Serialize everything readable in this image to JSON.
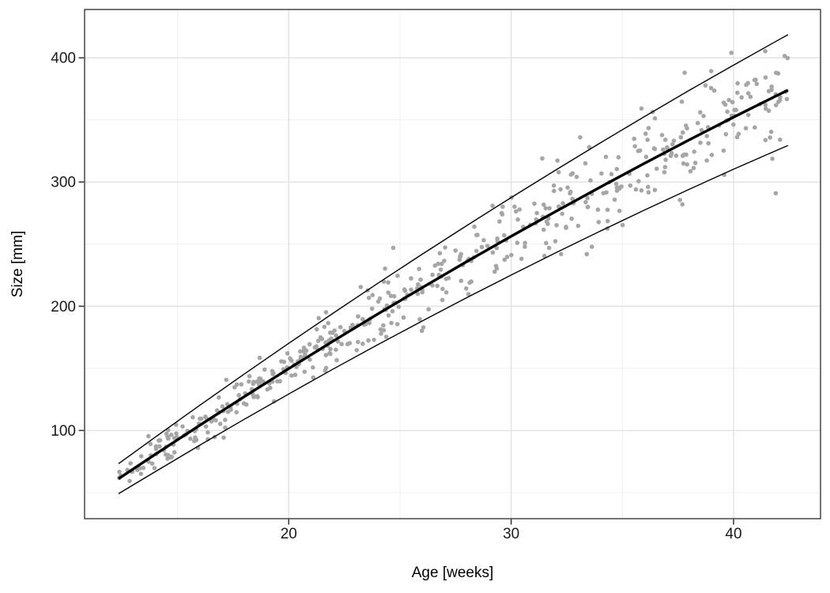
{
  "chart_data": {
    "type": "scatter",
    "title": "",
    "xlabel": "Age [weeks]",
    "ylabel": "Size [mm]",
    "x_domain": [
      10.82,
      43.91
    ],
    "y_domain": [
      29.0,
      438.9
    ],
    "x_ticks": [
      {
        "v": 20,
        "label": "20"
      },
      {
        "v": 30,
        "label": "30"
      },
      {
        "v": 40,
        "label": "40"
      }
    ],
    "y_ticks": [
      {
        "v": 100,
        "label": "100"
      },
      {
        "v": 200,
        "label": "200"
      },
      {
        "v": 300,
        "label": "300"
      },
      {
        "v": 400,
        "label": "400"
      }
    ],
    "x_minor": [
      15,
      25,
      35
    ],
    "y_minor": [
      50,
      150,
      250,
      350
    ],
    "grid": "major and minor, light gray on white panel",
    "legend": "none",
    "colors": {
      "point": "#a6a6a6",
      "line": "#000000",
      "grid_major": "#e3e3e3",
      "grid_minor": "#f0f0f0",
      "panel_border": "#454545",
      "tick": "#333333",
      "text": "#1a1a1a",
      "panel_bg": "#ffffff"
    },
    "scatter": {
      "n": 510,
      "seed": 77,
      "x_range": [
        12.35,
        42.45
      ],
      "fit": {
        "a": -95,
        "b": 13.3,
        "c": -0.053
      },
      "resid_sd": {
        "base": 6.0,
        "per_week": 0.55
      },
      "point_radius": 2.8,
      "notable_points": [
        [
          24.7,
          247
        ],
        [
          31.4,
          319
        ],
        [
          33.1,
          336
        ],
        [
          33.4,
          242
        ],
        [
          37.7,
          282
        ],
        [
          37.8,
          388
        ],
        [
          39.9,
          404
        ],
        [
          41.9,
          291
        ]
      ]
    },
    "series": [
      {
        "name": "fit_line",
        "type": "line",
        "width": 3.4,
        "points": [
          [
            12.35,
            61.2
          ],
          [
            14,
            80.8
          ],
          [
            16,
            104.2
          ],
          [
            18,
            127.2
          ],
          [
            20,
            149.8
          ],
          [
            22,
            172.0
          ],
          [
            24,
            193.7
          ],
          [
            26,
            215.0
          ],
          [
            28,
            235.9
          ],
          [
            30,
            256.3
          ],
          [
            32,
            276.3
          ],
          [
            34,
            295.9
          ],
          [
            36,
            315.1
          ],
          [
            38,
            333.9
          ],
          [
            40,
            352.2
          ],
          [
            42,
            370.1
          ],
          [
            42.45,
            374.0
          ]
        ]
      },
      {
        "name": "upper_limit",
        "type": "line",
        "width": 1.4,
        "points": [
          [
            12.35,
            73.3
          ],
          [
            14,
            94.7
          ],
          [
            16,
            120.3
          ],
          [
            18,
            145.4
          ],
          [
            20,
            170.2
          ],
          [
            22,
            194.5
          ],
          [
            24,
            218.4
          ],
          [
            26,
            241.9
          ],
          [
            28,
            264.9
          ],
          [
            30,
            287.5
          ],
          [
            32,
            309.6
          ],
          [
            34,
            331.4
          ],
          [
            36,
            352.7
          ],
          [
            38,
            373.7
          ],
          [
            40,
            394.1
          ],
          [
            42,
            414.2
          ],
          [
            42.45,
            418.6
          ]
        ]
      },
      {
        "name": "lower_limit",
        "type": "line",
        "width": 1.4,
        "points": [
          [
            12.35,
            49.1
          ],
          [
            14,
            66.9
          ],
          [
            16,
            88.1
          ],
          [
            18,
            109.0
          ],
          [
            20,
            129.4
          ],
          [
            22,
            149.5
          ],
          [
            24,
            169.0
          ],
          [
            26,
            188.1
          ],
          [
            28,
            206.9
          ],
          [
            30,
            225.1
          ],
          [
            32,
            243.0
          ],
          [
            34,
            260.4
          ],
          [
            36,
            277.5
          ],
          [
            38,
            294.1
          ],
          [
            40,
            310.3
          ],
          [
            42,
            326.0
          ],
          [
            42.45,
            329.4
          ]
        ]
      }
    ]
  }
}
